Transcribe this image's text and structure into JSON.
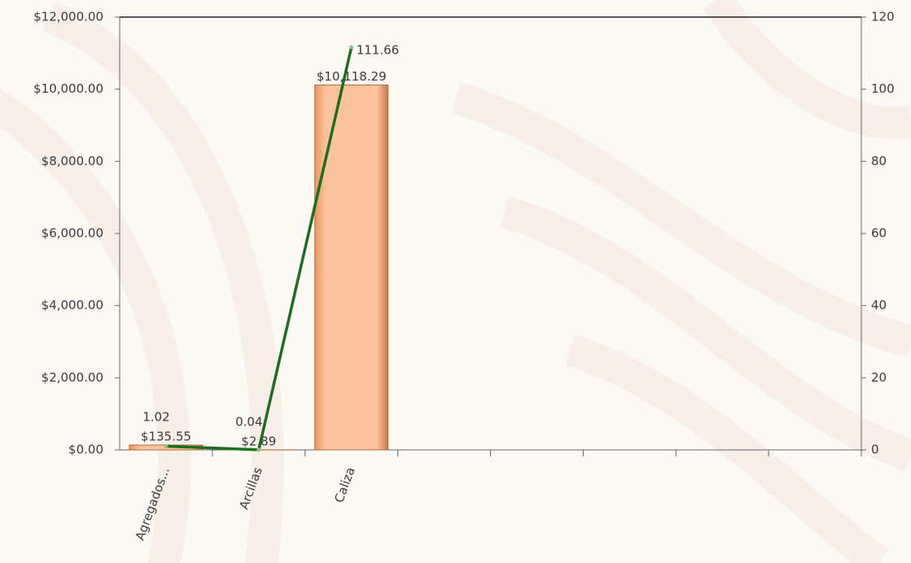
{
  "chart_data": {
    "type": "combo",
    "categories": [
      "Agregados...",
      "Arcillas",
      "Caliza",
      null,
      null,
      null,
      null,
      null
    ],
    "series": [
      {
        "type": "bar",
        "color": "#f8b78a",
        "values": [
          135.55,
          2.89,
          10118.29,
          null,
          null,
          null,
          null,
          null
        ],
        "value_labels": [
          "$135.55",
          "$2.89",
          "$10,118.29",
          null,
          null,
          null,
          null,
          null
        ]
      },
      {
        "type": "line",
        "axis": "y2",
        "color": "#1b6e1b",
        "values": [
          1.02,
          0.04,
          111.66,
          null,
          null,
          null,
          null,
          null
        ]
      }
    ],
    "ylim": [
      0,
      12000
    ],
    "yticks": [
      {
        "value": 0,
        "label": "$0.00"
      },
      {
        "value": 2000,
        "label": "$2,000.00"
      },
      {
        "value": 4000,
        "label": "$4,000.00"
      },
      {
        "value": 6000,
        "label": "$6,000.00"
      },
      {
        "value": 8000,
        "label": "$8,000.00"
      },
      {
        "value": 10000,
        "label": "$10,000.00"
      },
      {
        "value": 12000,
        "label": "$12,000.00"
      }
    ],
    "y2lim": [
      0,
      120
    ],
    "y2ticks": [
      0,
      20,
      40,
      60,
      80,
      100,
      120
    ],
    "grid": false
  }
}
